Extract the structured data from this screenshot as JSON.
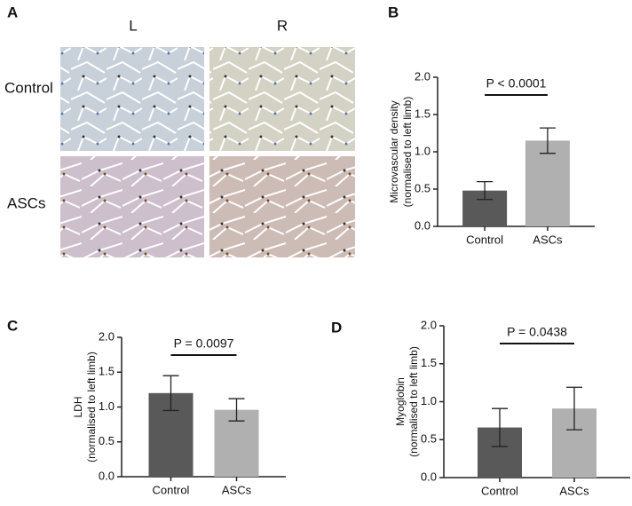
{
  "image_panel": {
    "label": "A",
    "columns": [
      "L",
      "R"
    ],
    "rows": [
      "Control",
      "ASCs"
    ]
  },
  "chart_data": [
    {
      "type": "bar",
      "panel_label": "B",
      "ylabel": [
        "Microvascular density",
        "(normalised to left limb)"
      ],
      "categories": [
        "Control",
        "ASCs"
      ],
      "values": [
        0.48,
        1.15
      ],
      "errors": [
        0.12,
        0.17
      ],
      "colors": [
        "#595959",
        "#b0b0b0"
      ],
      "ylim": [
        0,
        2
      ],
      "yticks": [
        {
          "value": 0,
          "label": "0.0"
        },
        0.5,
        {
          "value": 1,
          "label": "1.0"
        },
        1.5,
        {
          "value": 2,
          "label": "2.0"
        }
      ],
      "annotation": "P < 0.0001"
    },
    {
      "type": "bar",
      "panel_label": "C",
      "ylabel": [
        "LDH",
        "(normalised to left limb)"
      ],
      "categories": [
        "Control",
        "ASCs"
      ],
      "values": [
        1.2,
        0.96
      ],
      "errors": [
        0.25,
        0.16
      ],
      "colors": [
        "#595959",
        "#b0b0b0"
      ],
      "ylim": [
        0,
        2
      ],
      "yticks": [
        {
          "value": 0,
          "label": "0.0"
        },
        0.5,
        {
          "value": 1,
          "label": "1.0"
        },
        1.5,
        {
          "value": 2,
          "label": "2.0"
        }
      ],
      "annotation": "P = 0.0097"
    },
    {
      "type": "bar",
      "panel_label": "D",
      "ylabel": [
        "Myoglobin",
        "(normalised to left limb)"
      ],
      "categories": [
        "Control",
        "ASCs"
      ],
      "values": [
        0.66,
        0.91
      ],
      "errors": [
        0.25,
        0.28
      ],
      "colors": [
        "#595959",
        "#b0b0b0"
      ],
      "ylim": [
        0,
        2
      ],
      "yticks": [
        {
          "value": 0,
          "label": "0.0"
        },
        0.5,
        {
          "value": 1,
          "label": "1.0"
        },
        1.5,
        {
          "value": 2,
          "label": "2.0"
        }
      ],
      "annotation": "P = 0.0438"
    }
  ]
}
